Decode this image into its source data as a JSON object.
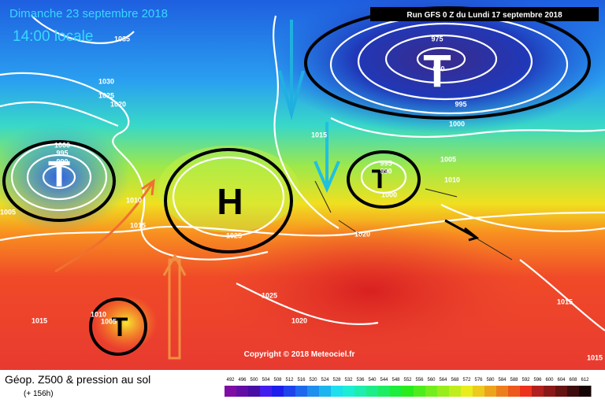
{
  "header": {
    "date": "Dimanche 23 septembre 2018",
    "time": "14:00 locale",
    "run": "Run GFS 0 Z du Lundi 17 septembre 2018"
  },
  "map": {
    "centers": [
      "T",
      "T",
      "H",
      "T",
      "T"
    ],
    "isobar_labels": [
      "1035",
      "1030",
      "1025",
      "1020",
      "975",
      "990",
      "995",
      "1000",
      "1000",
      "995",
      "990",
      "995",
      "990",
      "1000",
      "1005",
      "1010",
      "1015",
      "1010",
      "1015",
      "1025",
      "1020",
      "1025",
      "1020",
      "1015",
      "1010",
      "1005",
      "1015",
      "1005",
      "1015"
    ]
  },
  "copyright": "Copyright © 2018 Meteociel.fr",
  "legend": {
    "title": "Géop. Z500 & pression au sol",
    "lead": "(+ 156h)",
    "scale": [
      492,
      496,
      500,
      504,
      508,
      512,
      516,
      520,
      524,
      528,
      532,
      536,
      540,
      544,
      548,
      552,
      556,
      560,
      564,
      568,
      572,
      576,
      580,
      584,
      588,
      592,
      596,
      600,
      604,
      608,
      612
    ]
  }
}
